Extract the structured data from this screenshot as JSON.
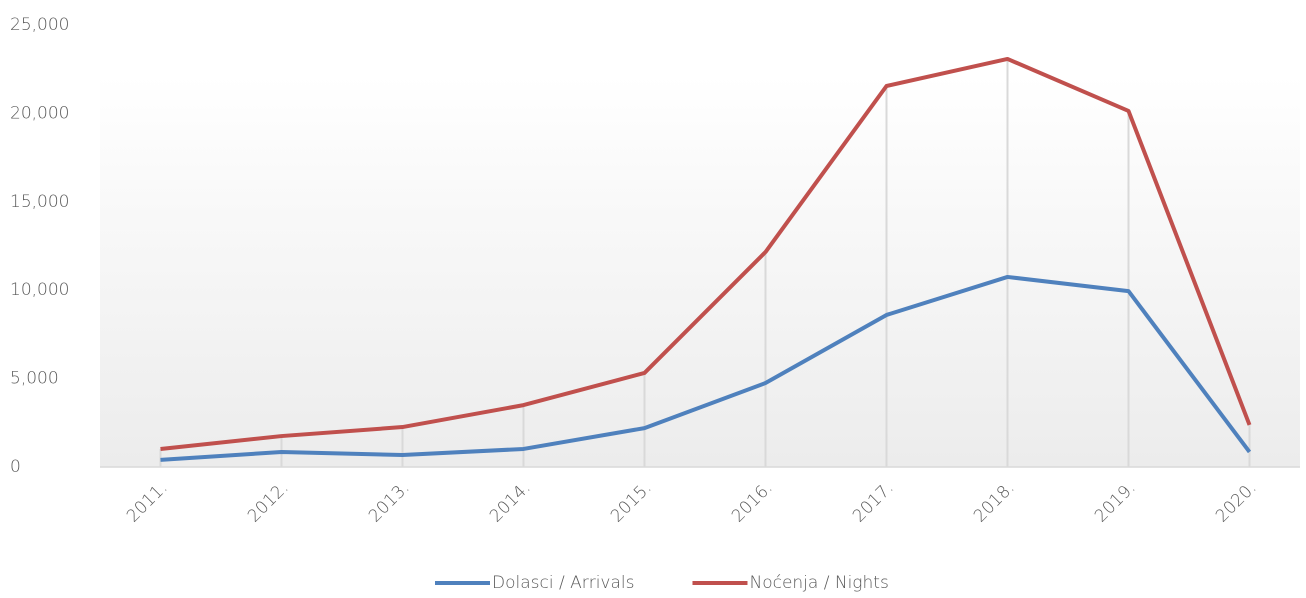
{
  "chart_data": {
    "type": "line",
    "categories": [
      "2011.",
      "2012.",
      "2013.",
      "2014.",
      "2015.",
      "2016.",
      "2017.",
      "2018.",
      "2019.",
      "2020."
    ],
    "series": [
      {
        "name": "Dolasci / Arrivals",
        "color": "#4f81bd",
        "values": [
          400,
          850,
          680,
          1020,
          2200,
          4750,
          8600,
          10750,
          9950,
          850
        ]
      },
      {
        "name": "Noćenja / Nights",
        "color": "#c0504d",
        "values": [
          1020,
          1750,
          2260,
          3500,
          5320,
          12160,
          21550,
          23080,
          20140,
          2380
        ]
      }
    ],
    "ylim": [
      0,
      25000
    ],
    "yticks": [
      0,
      {
        "value": 5000,
        "label": "5,000"
      },
      {
        "value": 10000,
        "label": "10,000"
      },
      {
        "value": 15000,
        "label": "15,000"
      },
      {
        "value": 20000,
        "label": "20,000"
      },
      {
        "value": 25000,
        "label": "25,000"
      }
    ],
    "legend": "bottom"
  }
}
